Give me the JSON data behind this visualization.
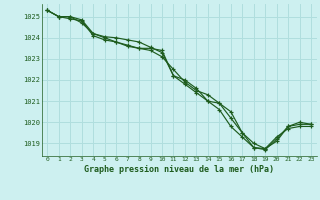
{
  "title": "Graphe pression niveau de la mer (hPa)",
  "bg_color": "#cdf0f0",
  "grid_color": "#b0dede",
  "line_color": "#1e5c1e",
  "xlim": [
    -0.5,
    23.5
  ],
  "ylim": [
    1018.4,
    1025.6
  ],
  "yticks": [
    1019,
    1020,
    1021,
    1022,
    1023,
    1024,
    1025
  ],
  "xticks": [
    0,
    1,
    2,
    3,
    4,
    5,
    6,
    7,
    8,
    9,
    10,
    11,
    12,
    13,
    14,
    15,
    16,
    17,
    18,
    19,
    20,
    21,
    22,
    23
  ],
  "series": [
    [
      1025.3,
      1025.0,
      1024.9,
      1024.8,
      1024.1,
      1023.9,
      1023.8,
      1023.65,
      1023.5,
      1023.4,
      1023.1,
      1022.5,
      1021.9,
      1021.5,
      1021.3,
      1020.9,
      1020.5,
      1019.5,
      1018.8,
      1018.75,
      1019.3,
      1019.7,
      1019.8,
      1019.8
    ],
    [
      1025.3,
      1025.0,
      1025.0,
      1024.85,
      1024.2,
      1024.0,
      1023.8,
      1023.6,
      1023.5,
      1023.5,
      1023.4,
      1022.2,
      1021.8,
      1021.4,
      1021.0,
      1020.6,
      1019.8,
      1019.3,
      1018.8,
      1018.7,
      1019.2,
      1019.8,
      1020.0,
      1019.9
    ],
    [
      1025.3,
      1025.0,
      1025.0,
      1024.7,
      1024.2,
      1024.05,
      1024.0,
      1023.9,
      1023.8,
      1023.55,
      1023.3,
      1022.2,
      1022.0,
      1021.6,
      1021.0,
      1020.9,
      1020.2,
      1019.5,
      1019.0,
      1018.75,
      1019.1,
      1019.8,
      1019.9,
      1019.9
    ]
  ]
}
